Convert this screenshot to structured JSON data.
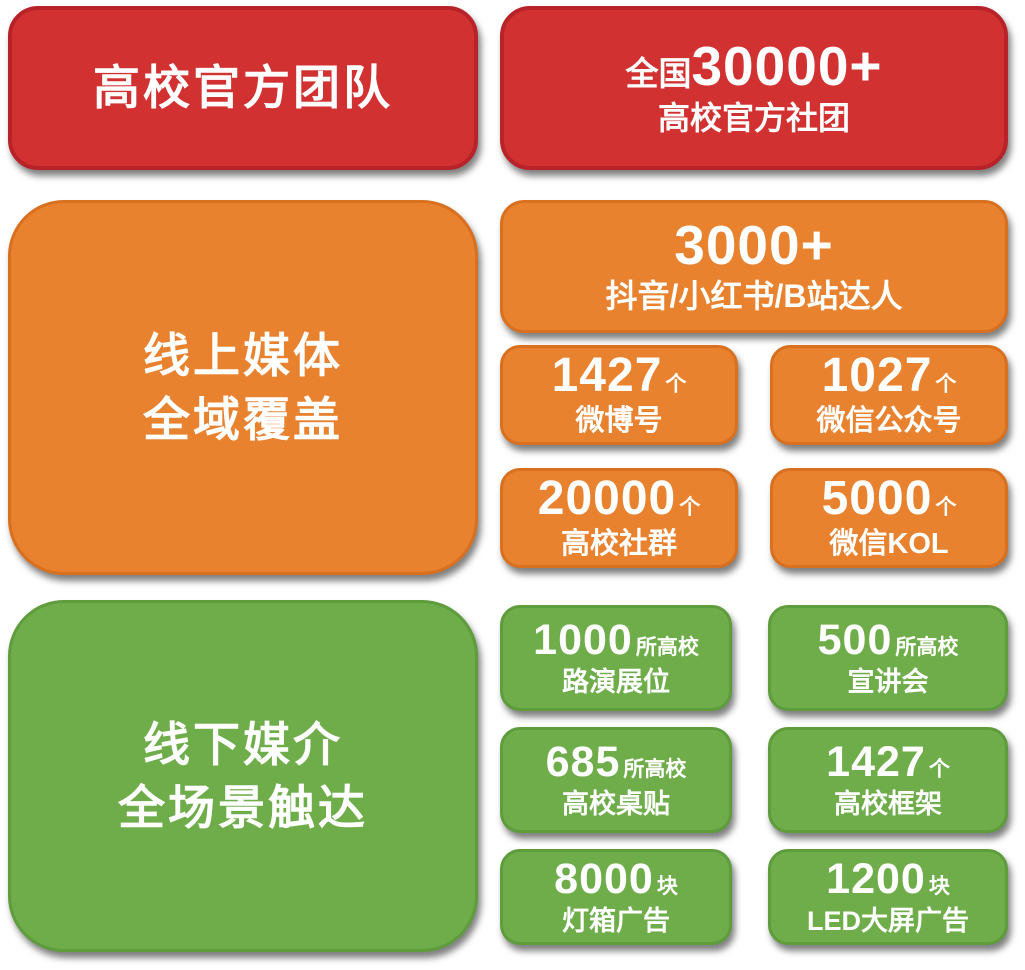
{
  "colors": {
    "red_fill": "#D23131",
    "red_border": "#B8232A",
    "orange_fill": "#E8822E",
    "orange_border": "#D8701F",
    "green_fill": "#6FAD4B",
    "green_border": "#5E9C3C",
    "text": "#FFFFFF",
    "background": "#FFFFFF"
  },
  "sections": {
    "official_teams": {
      "title": "高校官方团队",
      "hero": {
        "prefix": "全国",
        "number": "30000+",
        "label": "高校官方社团"
      }
    },
    "online_media": {
      "title_line1": "线上媒体",
      "title_line2": "全域覆盖",
      "hero": {
        "number": "3000+",
        "label": "抖音/小红书/B站达人"
      },
      "stats": [
        {
          "number": "1427",
          "unit": "个",
          "label": "微博号"
        },
        {
          "number": "1027",
          "unit": "个",
          "label": "微信公众号"
        },
        {
          "number": "20000",
          "unit": "个",
          "label": "高校社群"
        },
        {
          "number": "5000",
          "unit": "个",
          "label": "微信KOL"
        }
      ]
    },
    "offline_media": {
      "title_line1": "线下媒介",
      "title_line2": "全场景触达",
      "stats": [
        {
          "number": "1000",
          "unit": "所高校",
          "label": "路演展位"
        },
        {
          "number": "500",
          "unit": "所高校",
          "label": "宣讲会"
        },
        {
          "number": "685",
          "unit": "所高校",
          "label": "高校桌贴"
        },
        {
          "number": "1427",
          "unit": "个",
          "label": "高校框架"
        },
        {
          "number": "8000",
          "unit": "块",
          "label": "灯箱广告"
        },
        {
          "number": "1200",
          "unit": "块",
          "label": "LED大屏广告"
        }
      ]
    }
  }
}
